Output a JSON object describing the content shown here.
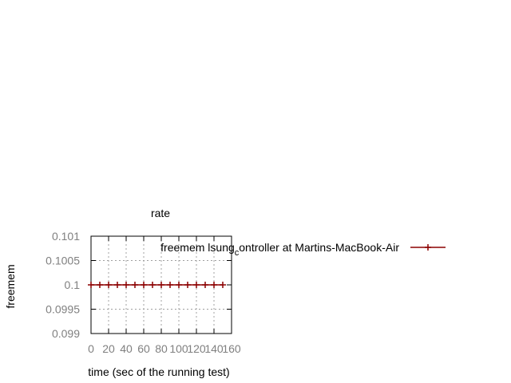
{
  "chart_data": {
    "type": "line",
    "title": "rate",
    "xlabel": "time (sec of the running test)",
    "ylabel": "freemem",
    "xlim": [
      0,
      160
    ],
    "ylim": [
      0.099,
      0.101
    ],
    "xticks": [
      0,
      20,
      40,
      60,
      80,
      100,
      120,
      140,
      160
    ],
    "xtick_labels": [
      "0",
      "20",
      "40",
      "60",
      "80",
      "100",
      "120",
      "140",
      "160"
    ],
    "yticks": [
      0.099,
      0.0995,
      0.1,
      0.1005,
      0.101
    ],
    "ytick_labels": [
      "0.099",
      "0.0995",
      "0.1",
      "0.1005",
      "0.101"
    ],
    "grid": true,
    "legend_position": "top-right",
    "series": [
      {
        "name": "freemem lsung controller at Martins-MacBook-Air",
        "name_parts": {
          "pre": "freemem l",
          "mid": "sung",
          "sub": "c",
          "post": "ontroller at Martins-MacBook-Air"
        },
        "color": "#8b0000",
        "marker": "plus",
        "x": [
          0,
          10,
          20,
          30,
          40,
          50,
          60,
          70,
          80,
          90,
          100,
          110,
          120,
          130,
          140,
          150
        ],
        "y": [
          0.1,
          0.1,
          0.1,
          0.1,
          0.1,
          0.1,
          0.1,
          0.1,
          0.1,
          0.1,
          0.1,
          0.1,
          0.1,
          0.1,
          0.1,
          0.1
        ]
      }
    ]
  }
}
